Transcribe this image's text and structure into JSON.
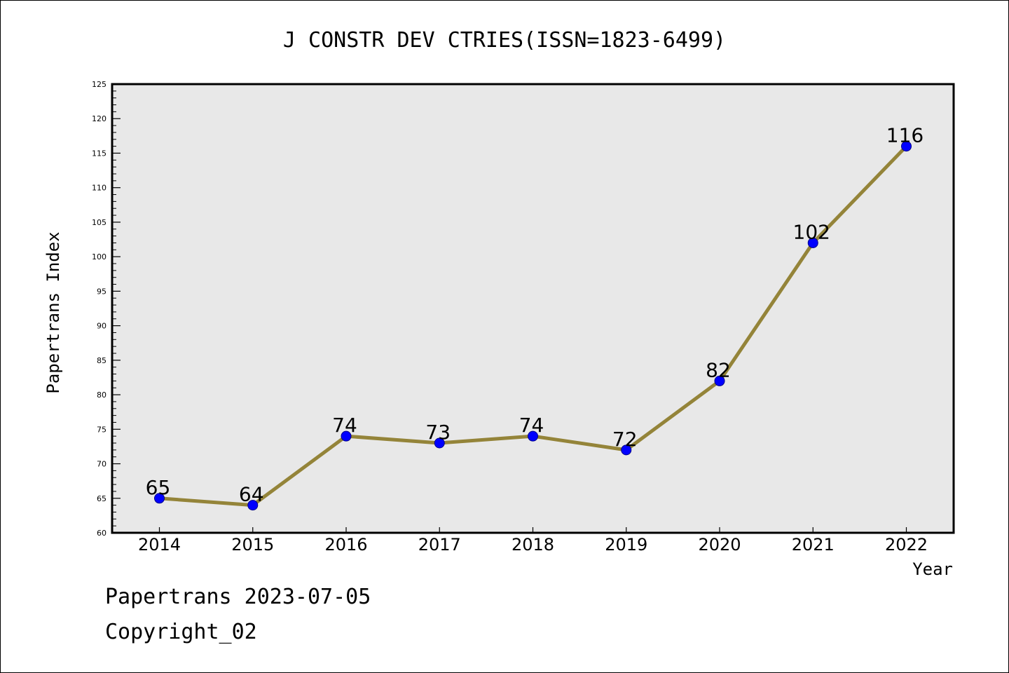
{
  "chart_data": {
    "type": "line",
    "title": "J CONSTR DEV CTRIES(ISSN=1823-6499)",
    "xlabel": "Year",
    "ylabel": "Papertrans Index",
    "categories": [
      "2014",
      "2015",
      "2016",
      "2017",
      "2018",
      "2019",
      "2020",
      "2021",
      "2022"
    ],
    "series": [
      {
        "values": [
          65,
          64,
          74,
          73,
          74,
          72,
          82,
          102,
          116
        ],
        "color": "#948439",
        "marker_color": "#0000ff"
      }
    ],
    "data_labels": [
      "65",
      "64",
      "74",
      "73",
      "74",
      "72",
      "82",
      "102",
      "116"
    ],
    "ylim": [
      60,
      125
    ],
    "yticks": [
      "60",
      "65",
      "70",
      "75",
      "80",
      "85",
      "90",
      "95",
      "100",
      "105",
      "110",
      "115",
      "120",
      "125"
    ],
    "grid": false,
    "plot_background": "#e8e8e8"
  },
  "footer": {
    "date_line": "Papertrans 2023-07-05",
    "copyright_line": "Copyright_02"
  }
}
